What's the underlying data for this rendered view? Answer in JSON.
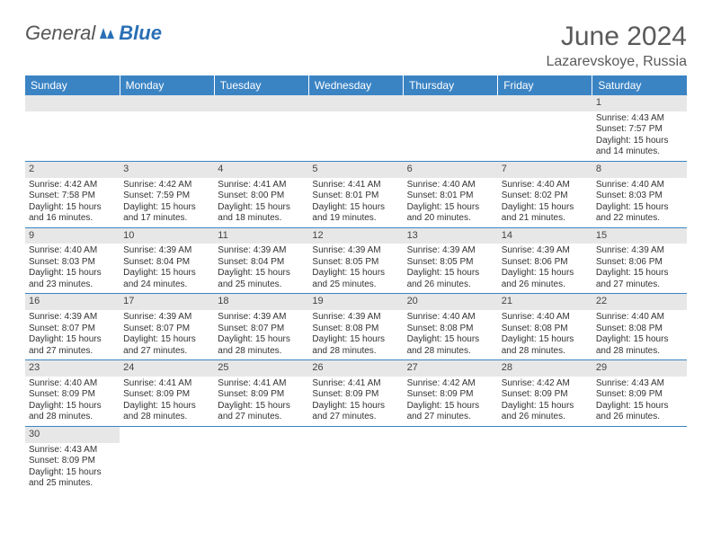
{
  "logo": {
    "part1": "General",
    "part2": "Blue"
  },
  "title": "June 2024",
  "location": "Lazarevskoye, Russia",
  "colors": {
    "header_bg": "#3b84c4",
    "header_text": "#ffffff",
    "daynum_bg": "#e7e7e7",
    "cell_border": "#3b84c4",
    "logo_gray": "#565656",
    "logo_blue": "#2a6fb5",
    "text_gray": "#5a5a5a"
  },
  "day_headers": [
    "Sunday",
    "Monday",
    "Tuesday",
    "Wednesday",
    "Thursday",
    "Friday",
    "Saturday"
  ],
  "weeks": [
    [
      null,
      null,
      null,
      null,
      null,
      null,
      {
        "n": "1",
        "sr": "Sunrise: 4:43 AM",
        "ss": "Sunset: 7:57 PM",
        "d1": "Daylight: 15 hours",
        "d2": "and 14 minutes."
      }
    ],
    [
      {
        "n": "2",
        "sr": "Sunrise: 4:42 AM",
        "ss": "Sunset: 7:58 PM",
        "d1": "Daylight: 15 hours",
        "d2": "and 16 minutes."
      },
      {
        "n": "3",
        "sr": "Sunrise: 4:42 AM",
        "ss": "Sunset: 7:59 PM",
        "d1": "Daylight: 15 hours",
        "d2": "and 17 minutes."
      },
      {
        "n": "4",
        "sr": "Sunrise: 4:41 AM",
        "ss": "Sunset: 8:00 PM",
        "d1": "Daylight: 15 hours",
        "d2": "and 18 minutes."
      },
      {
        "n": "5",
        "sr": "Sunrise: 4:41 AM",
        "ss": "Sunset: 8:01 PM",
        "d1": "Daylight: 15 hours",
        "d2": "and 19 minutes."
      },
      {
        "n": "6",
        "sr": "Sunrise: 4:40 AM",
        "ss": "Sunset: 8:01 PM",
        "d1": "Daylight: 15 hours",
        "d2": "and 20 minutes."
      },
      {
        "n": "7",
        "sr": "Sunrise: 4:40 AM",
        "ss": "Sunset: 8:02 PM",
        "d1": "Daylight: 15 hours",
        "d2": "and 21 minutes."
      },
      {
        "n": "8",
        "sr": "Sunrise: 4:40 AM",
        "ss": "Sunset: 8:03 PM",
        "d1": "Daylight: 15 hours",
        "d2": "and 22 minutes."
      }
    ],
    [
      {
        "n": "9",
        "sr": "Sunrise: 4:40 AM",
        "ss": "Sunset: 8:03 PM",
        "d1": "Daylight: 15 hours",
        "d2": "and 23 minutes."
      },
      {
        "n": "10",
        "sr": "Sunrise: 4:39 AM",
        "ss": "Sunset: 8:04 PM",
        "d1": "Daylight: 15 hours",
        "d2": "and 24 minutes."
      },
      {
        "n": "11",
        "sr": "Sunrise: 4:39 AM",
        "ss": "Sunset: 8:04 PM",
        "d1": "Daylight: 15 hours",
        "d2": "and 25 minutes."
      },
      {
        "n": "12",
        "sr": "Sunrise: 4:39 AM",
        "ss": "Sunset: 8:05 PM",
        "d1": "Daylight: 15 hours",
        "d2": "and 25 minutes."
      },
      {
        "n": "13",
        "sr": "Sunrise: 4:39 AM",
        "ss": "Sunset: 8:05 PM",
        "d1": "Daylight: 15 hours",
        "d2": "and 26 minutes."
      },
      {
        "n": "14",
        "sr": "Sunrise: 4:39 AM",
        "ss": "Sunset: 8:06 PM",
        "d1": "Daylight: 15 hours",
        "d2": "and 26 minutes."
      },
      {
        "n": "15",
        "sr": "Sunrise: 4:39 AM",
        "ss": "Sunset: 8:06 PM",
        "d1": "Daylight: 15 hours",
        "d2": "and 27 minutes."
      }
    ],
    [
      {
        "n": "16",
        "sr": "Sunrise: 4:39 AM",
        "ss": "Sunset: 8:07 PM",
        "d1": "Daylight: 15 hours",
        "d2": "and 27 minutes."
      },
      {
        "n": "17",
        "sr": "Sunrise: 4:39 AM",
        "ss": "Sunset: 8:07 PM",
        "d1": "Daylight: 15 hours",
        "d2": "and 27 minutes."
      },
      {
        "n": "18",
        "sr": "Sunrise: 4:39 AM",
        "ss": "Sunset: 8:07 PM",
        "d1": "Daylight: 15 hours",
        "d2": "and 28 minutes."
      },
      {
        "n": "19",
        "sr": "Sunrise: 4:39 AM",
        "ss": "Sunset: 8:08 PM",
        "d1": "Daylight: 15 hours",
        "d2": "and 28 minutes."
      },
      {
        "n": "20",
        "sr": "Sunrise: 4:40 AM",
        "ss": "Sunset: 8:08 PM",
        "d1": "Daylight: 15 hours",
        "d2": "and 28 minutes."
      },
      {
        "n": "21",
        "sr": "Sunrise: 4:40 AM",
        "ss": "Sunset: 8:08 PM",
        "d1": "Daylight: 15 hours",
        "d2": "and 28 minutes."
      },
      {
        "n": "22",
        "sr": "Sunrise: 4:40 AM",
        "ss": "Sunset: 8:08 PM",
        "d1": "Daylight: 15 hours",
        "d2": "and 28 minutes."
      }
    ],
    [
      {
        "n": "23",
        "sr": "Sunrise: 4:40 AM",
        "ss": "Sunset: 8:09 PM",
        "d1": "Daylight: 15 hours",
        "d2": "and 28 minutes."
      },
      {
        "n": "24",
        "sr": "Sunrise: 4:41 AM",
        "ss": "Sunset: 8:09 PM",
        "d1": "Daylight: 15 hours",
        "d2": "and 28 minutes."
      },
      {
        "n": "25",
        "sr": "Sunrise: 4:41 AM",
        "ss": "Sunset: 8:09 PM",
        "d1": "Daylight: 15 hours",
        "d2": "and 27 minutes."
      },
      {
        "n": "26",
        "sr": "Sunrise: 4:41 AM",
        "ss": "Sunset: 8:09 PM",
        "d1": "Daylight: 15 hours",
        "d2": "and 27 minutes."
      },
      {
        "n": "27",
        "sr": "Sunrise: 4:42 AM",
        "ss": "Sunset: 8:09 PM",
        "d1": "Daylight: 15 hours",
        "d2": "and 27 minutes."
      },
      {
        "n": "28",
        "sr": "Sunrise: 4:42 AM",
        "ss": "Sunset: 8:09 PM",
        "d1": "Daylight: 15 hours",
        "d2": "and 26 minutes."
      },
      {
        "n": "29",
        "sr": "Sunrise: 4:43 AM",
        "ss": "Sunset: 8:09 PM",
        "d1": "Daylight: 15 hours",
        "d2": "and 26 minutes."
      }
    ],
    [
      {
        "n": "30",
        "sr": "Sunrise: 4:43 AM",
        "ss": "Sunset: 8:09 PM",
        "d1": "Daylight: 15 hours",
        "d2": "and 25 minutes."
      },
      null,
      null,
      null,
      null,
      null,
      null
    ]
  ]
}
